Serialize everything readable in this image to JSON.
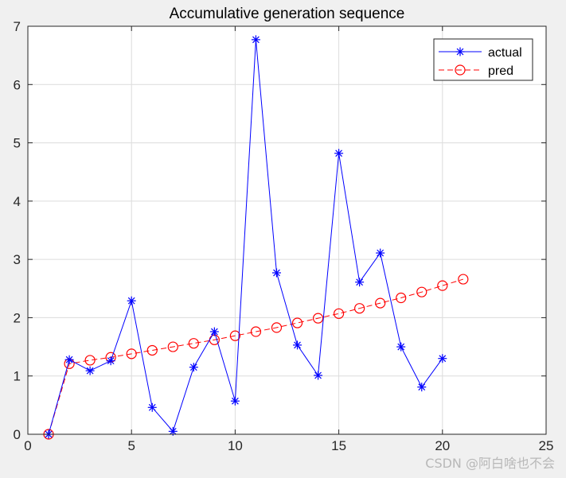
{
  "chart_data": {
    "type": "line",
    "title": "Accumulative generation sequence",
    "xlabel": "",
    "ylabel": "",
    "xlim": [
      0,
      25
    ],
    "ylim": [
      0,
      7
    ],
    "xticks": [
      0,
      5,
      10,
      15,
      20,
      25
    ],
    "yticks": [
      0,
      1,
      2,
      3,
      4,
      5,
      6,
      7
    ],
    "grid": true,
    "legend_position": "top-right",
    "series": [
      {
        "name": "actual",
        "color": "#0000ff",
        "line_style": "solid",
        "marker": "asterisk",
        "x": [
          1,
          2,
          3,
          4,
          5,
          6,
          7,
          8,
          9,
          10,
          11,
          12,
          13,
          14,
          15,
          16,
          17,
          18,
          19,
          20
        ],
        "y": [
          0,
          1.28,
          1.09,
          1.26,
          2.29,
          0.46,
          0.05,
          1.15,
          1.76,
          0.57,
          6.77,
          2.77,
          1.53,
          1.01,
          4.82,
          2.61,
          3.11,
          1.5,
          0.81,
          1.3
        ]
      },
      {
        "name": "pred",
        "color": "#ff0000",
        "line_style": "dashed",
        "marker": "circle",
        "x": [
          1,
          2,
          3,
          4,
          5,
          6,
          7,
          8,
          9,
          10,
          11,
          12,
          13,
          14,
          15,
          16,
          17,
          18,
          19,
          20,
          21
        ],
        "y": [
          0,
          1.21,
          1.27,
          1.32,
          1.38,
          1.44,
          1.5,
          1.56,
          1.62,
          1.69,
          1.76,
          1.83,
          1.91,
          1.99,
          2.07,
          2.16,
          2.25,
          2.34,
          2.44,
          2.55,
          2.66
        ]
      }
    ]
  },
  "watermark": "CSDN @阿白啥也不会"
}
